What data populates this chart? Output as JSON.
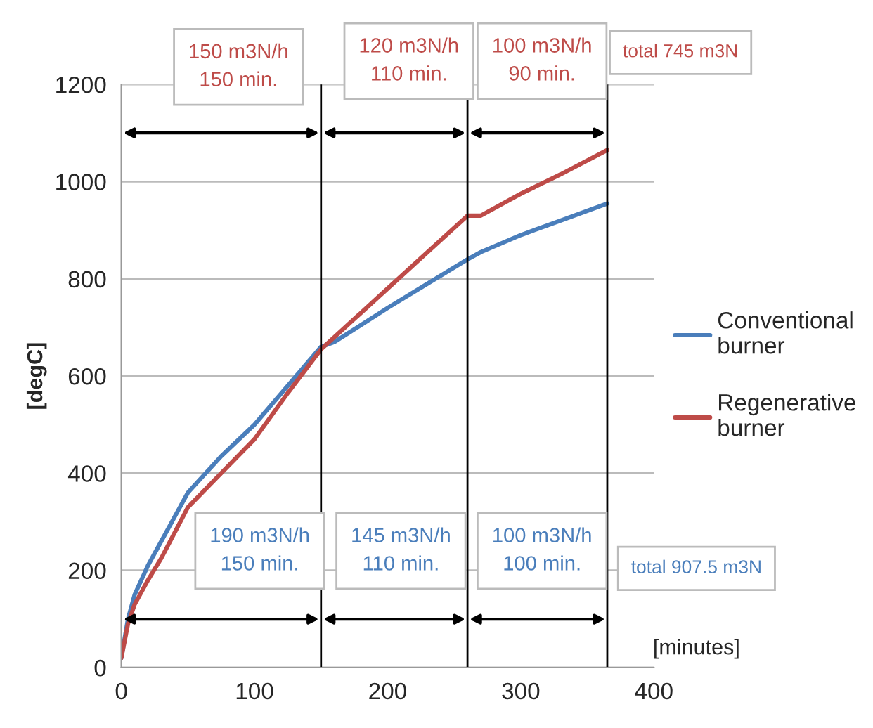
{
  "chart_data": {
    "type": "line",
    "xlabel": "[minutes]",
    "ylabel": "[degC]",
    "series": [
      {
        "name": "Conventional burner",
        "color": "#4a7ebb",
        "x": [
          0,
          5,
          10,
          20,
          30,
          50,
          75,
          100,
          125,
          150,
          160,
          200,
          230,
          260,
          270,
          300,
          330,
          365
        ],
        "values": [
          20,
          100,
          150,
          210,
          260,
          360,
          435,
          500,
          580,
          660,
          670,
          740,
          790,
          840,
          855,
          890,
          920,
          955
        ]
      },
      {
        "name": "Regenerative burner",
        "color": "#be4b48",
        "x": [
          0,
          5,
          10,
          20,
          30,
          50,
          75,
          100,
          125,
          150,
          160,
          200,
          230,
          260,
          270,
          300,
          330,
          365
        ],
        "values": [
          20,
          90,
          130,
          180,
          225,
          330,
          400,
          470,
          565,
          655,
          680,
          780,
          855,
          930,
          930,
          975,
          1015,
          1065
        ]
      }
    ],
    "xlim": [
      0,
      400
    ],
    "xticks": [
      0,
      100,
      200,
      300,
      400
    ],
    "ylim": [
      0,
      1200
    ],
    "yticks": [
      0,
      200,
      400,
      600,
      800,
      1000,
      1200
    ],
    "ref_lines": [
      {
        "axis": "x",
        "value": 150,
        "color": "#000000"
      },
      {
        "axis": "x",
        "value": 260,
        "color": "#000000"
      },
      {
        "axis": "x",
        "value": 365,
        "color": "#000000"
      }
    ],
    "annotations": [
      "150 m3N/h\n150 min.",
      "120 m3N/h\n110 min.",
      "100 m3N/h\n90 min.",
      "total 745 m3N",
      "190 m3N/h\n150 min.",
      "145 m3N/h\n110 min.",
      "100 m3N/h\n100 min.",
      "total 907.5 m3N"
    ],
    "grid": "y",
    "legend": "right",
    "line_style": "solid",
    "marker": "none"
  }
}
